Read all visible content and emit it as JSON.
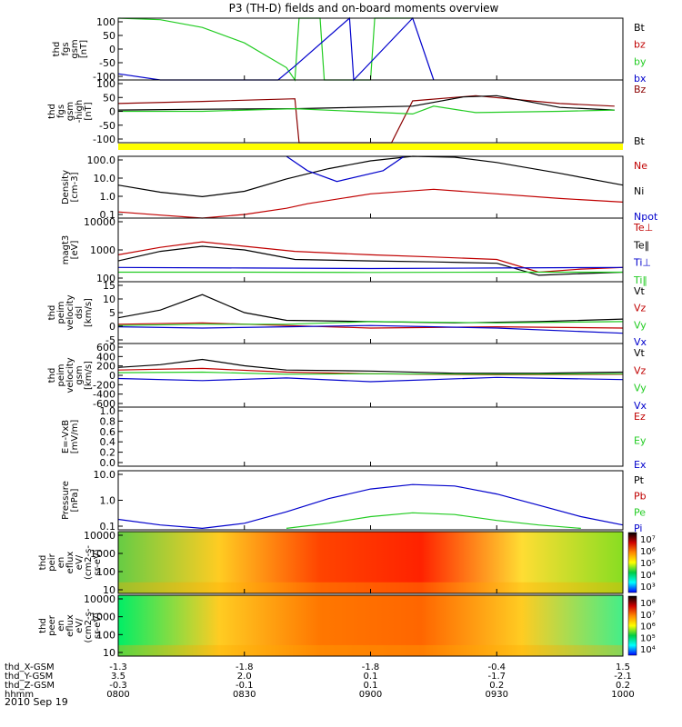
{
  "title": "P3 (TH-D) fields and on-board moments overview",
  "date_label": "2010 Sep 19",
  "colors": {
    "black": "#000000",
    "red": "#c00000",
    "green": "#22cc22",
    "blue": "#0000cc",
    "yellow": "#ffff00",
    "dark_red": "#8b0000"
  },
  "ephemeris": {
    "rows": [
      {
        "label": "thd_X-GSM",
        "values": [
          "-1.3",
          "-1.8",
          "-1.8",
          "-0.4",
          "1.5"
        ]
      },
      {
        "label": "thd_Y-GSM",
        "values": [
          "3.5",
          "2.0",
          "0.1",
          "-1.7",
          "-2.1"
        ]
      },
      {
        "label": "thd_Z-GSM",
        "values": [
          "-0.3",
          "-0.1",
          "0.1",
          "0.2",
          "0.2"
        ]
      },
      {
        "label": "hhmm",
        "values": [
          "0800",
          "0830",
          "0900",
          "0930",
          "1000"
        ]
      }
    ]
  },
  "chart_data": [
    {
      "id": "fgs",
      "type": "line",
      "ylabel": [
        "thd",
        "fgs",
        "gsm",
        "[nT]"
      ],
      "yticks": [
        "100",
        "50",
        "0",
        "-50",
        "-100"
      ],
      "ylim": [
        -100,
        100
      ],
      "legend": [
        {
          "text": "Bt",
          "color": "#000000"
        },
        {
          "text": "bz",
          "color": "#c00000"
        },
        {
          "text": "by",
          "color": "#22cc22"
        },
        {
          "text": "bx",
          "color": "#0000cc"
        }
      ],
      "series": [
        {
          "name": "by",
          "color": "#22cc22",
          "x": [
            "08:00",
            "08:10",
            "08:20",
            "08:30",
            "08:40",
            "08:42",
            "08:43",
            "08:48",
            "08:49",
            "09:00",
            "09:01",
            "09:10"
          ],
          "y": [
            100,
            95,
            70,
            20,
            -60,
            -100,
            100,
            100,
            -100,
            -100,
            100,
            100
          ]
        },
        {
          "name": "bx",
          "color": "#0000cc",
          "x": [
            "08:00",
            "08:10",
            "08:38",
            "08:42",
            "08:55",
            "08:56",
            "09:10",
            "09:15"
          ],
          "y": [
            -80,
            -100,
            -100,
            -55,
            100,
            -100,
            100,
            -100
          ]
        }
      ]
    },
    {
      "id": "fgs_high",
      "type": "line",
      "ylabel": [
        "thd",
        "fgs",
        "gsm",
        "-high",
        "[nT]"
      ],
      "yticks": [
        "100",
        "50",
        "0",
        "-50",
        "-100"
      ],
      "ylim": [
        -120,
        120
      ],
      "legend": [
        {
          "text": "Bz",
          "color": "#8b0000"
        },
        {
          "text": "Bt",
          "color": "#000000"
        }
      ],
      "series": [
        {
          "name": "Bz",
          "color": "#8b0000",
          "x": [
            "08:00",
            "08:20",
            "08:42",
            "08:43",
            "09:05",
            "09:10",
            "09:25",
            "09:45",
            "09:58"
          ],
          "y": [
            30,
            38,
            48,
            -120,
            -120,
            40,
            60,
            30,
            20
          ]
        },
        {
          "name": "Bt",
          "color": "#000000",
          "x": [
            "08:00",
            "08:20",
            "08:42",
            "09:10",
            "09:22",
            "09:30",
            "09:45",
            "09:58"
          ],
          "y": [
            5,
            8,
            10,
            20,
            55,
            60,
            15,
            5
          ]
        },
        {
          "name": "by",
          "color": "#22cc22",
          "x": [
            "08:00",
            "08:20",
            "08:42",
            "09:10",
            "09:15",
            "09:25",
            "09:45",
            "09:58"
          ],
          "y": [
            0,
            0,
            10,
            -10,
            20,
            -5,
            0,
            5
          ]
        }
      ]
    },
    {
      "id": "density",
      "type": "line",
      "log": true,
      "ylabel": [
        "Density",
        "[cm-3]"
      ],
      "yticks": [
        "100.0",
        "10.0",
        "1.0",
        "0.1"
      ],
      "ylim": [
        0.1,
        100
      ],
      "legend": [
        {
          "text": "Ne",
          "color": "#c00000"
        },
        {
          "text": "Ni",
          "color": "#000000"
        },
        {
          "text": "Npot",
          "color": "#0000cc"
        }
      ],
      "series": [
        {
          "name": "Ne",
          "color": "#c00000",
          "x": [
            "08:00",
            "08:10",
            "08:20",
            "08:30",
            "08:40",
            "08:45",
            "09:00",
            "09:15",
            "09:30",
            "09:45",
            "10:00"
          ],
          "y": [
            0.2,
            0.14,
            0.1,
            0.15,
            0.3,
            0.5,
            1.5,
            2.5,
            1.5,
            0.9,
            0.6
          ]
        },
        {
          "name": "Ni",
          "color": "#000000",
          "x": [
            "08:00",
            "08:10",
            "08:20",
            "08:30",
            "08:40",
            "08:50",
            "09:00",
            "09:10",
            "09:20",
            "09:30",
            "09:45",
            "10:00"
          ],
          "y": [
            4,
            1.8,
            1.1,
            2,
            8,
            25,
            60,
            100,
            90,
            50,
            15,
            4
          ]
        },
        {
          "name": "Npot",
          "color": "#0000cc",
          "x": [
            "08:40",
            "08:45",
            "08:52",
            "09:03",
            "09:08"
          ],
          "y": [
            100,
            20,
            6,
            20,
            100
          ]
        }
      ]
    },
    {
      "id": "temperature",
      "type": "line",
      "log": true,
      "ylabel": [
        "magt3",
        "[eV]"
      ],
      "yticks": [
        "10000",
        "1000",
        "100"
      ],
      "ylim": [
        100,
        10000
      ],
      "legend": [
        {
          "text": "Te⊥",
          "color": "#c00000"
        },
        {
          "text": "Te‖",
          "color": "#000000"
        },
        {
          "text": "Ti⊥",
          "color": "#0000cc"
        },
        {
          "text": "Ti‖",
          "color": "#22cc22"
        }
      ],
      "series": [
        {
          "name": "Te⊥",
          "color": "#c00000",
          "x": [
            "08:00",
            "08:10",
            "08:20",
            "08:30",
            "08:42",
            "09:00",
            "09:15",
            "09:30",
            "09:40",
            "09:50",
            "10:00"
          ],
          "y": [
            700,
            1200,
            1800,
            1300,
            900,
            700,
            600,
            500,
            200,
            250,
            280
          ]
        },
        {
          "name": "Te‖",
          "color": "#000000",
          "x": [
            "08:00",
            "08:10",
            "08:20",
            "08:30",
            "08:42",
            "09:00",
            "09:15",
            "09:30",
            "09:40",
            "09:50",
            "10:00"
          ],
          "y": [
            450,
            900,
            1300,
            1000,
            500,
            450,
            420,
            380,
            160,
            180,
            200
          ]
        },
        {
          "name": "Ti⊥",
          "color": "#0000cc",
          "x": [
            "08:00",
            "08:30",
            "09:00",
            "09:30",
            "10:00"
          ],
          "y": [
            280,
            270,
            260,
            270,
            280
          ]
        },
        {
          "name": "Ti‖",
          "color": "#22cc22",
          "x": [
            "08:00",
            "08:30",
            "09:00",
            "09:30",
            "10:00"
          ],
          "y": [
            200,
            200,
            195,
            200,
            200
          ]
        }
      ]
    },
    {
      "id": "velocity_dsl",
      "type": "line",
      "ylabel": [
        "thd",
        "peim",
        "velocity",
        "dsl",
        "[km/s]"
      ],
      "yticks": [
        "15",
        "10",
        "5",
        "0",
        "-5"
      ],
      "ylim": [
        -7,
        17
      ],
      "legend": [
        {
          "text": "Vt",
          "color": "#000000"
        },
        {
          "text": "Vz",
          "color": "#c00000"
        },
        {
          "text": "Vy",
          "color": "#22cc22"
        },
        {
          "text": "Vx",
          "color": "#0000cc"
        }
      ],
      "series": [
        {
          "name": "Vt",
          "color": "#000000",
          "x": [
            "08:00",
            "08:10",
            "08:20",
            "08:30",
            "08:40",
            "09:00",
            "09:20",
            "09:40",
            "10:00"
          ],
          "y": [
            3,
            6,
            12,
            5,
            2,
            1.5,
            1,
            1.5,
            2.5
          ]
        },
        {
          "name": "Vz",
          "color": "#c00000",
          "x": [
            "08:00",
            "08:20",
            "08:40",
            "09:00",
            "09:30",
            "10:00"
          ],
          "y": [
            0.5,
            1,
            0,
            -1,
            -0.5,
            -1
          ]
        },
        {
          "name": "Vy",
          "color": "#22cc22",
          "x": [
            "08:00",
            "08:20",
            "08:40",
            "09:00",
            "09:30",
            "10:00"
          ],
          "y": [
            0,
            0.5,
            0.5,
            1.5,
            1,
            1.5
          ]
        },
        {
          "name": "Vx",
          "color": "#0000cc",
          "x": [
            "08:00",
            "08:20",
            "08:40",
            "09:00",
            "09:30",
            "10:00"
          ],
          "y": [
            -0.5,
            -1,
            -0.5,
            0,
            -1,
            -3
          ]
        }
      ]
    },
    {
      "id": "velocity_gsm",
      "type": "line",
      "ylabel": [
        "thd",
        "peim",
        "velocity",
        "gsm",
        "[km/s]"
      ],
      "yticks": [
        "600",
        "400",
        "200",
        "0",
        "-200",
        "-400",
        "-600"
      ],
      "ylim": [
        -600,
        600
      ],
      "legend": [
        {
          "text": "Vt",
          "color": "#000000"
        },
        {
          "text": "Vz",
          "color": "#c00000"
        },
        {
          "text": "Vy",
          "color": "#22cc22"
        },
        {
          "text": "Vx",
          "color": "#0000cc"
        }
      ],
      "series": [
        {
          "name": "Vt",
          "color": "#000000",
          "x": [
            "08:00",
            "08:10",
            "08:20",
            "08:30",
            "08:40",
            "09:00",
            "09:20",
            "09:40",
            "10:00"
          ],
          "y": [
            150,
            200,
            300,
            180,
            100,
            80,
            40,
            40,
            60
          ]
        },
        {
          "name": "Vz",
          "color": "#c00000",
          "x": [
            "08:00",
            "08:20",
            "08:40",
            "09:00",
            "09:30",
            "10:00"
          ],
          "y": [
            100,
            130,
            60,
            30,
            10,
            20
          ]
        },
        {
          "name": "Vy",
          "color": "#22cc22",
          "x": [
            "08:00",
            "08:20",
            "08:40",
            "09:00",
            "09:30",
            "10:00"
          ],
          "y": [
            50,
            60,
            20,
            30,
            20,
            30
          ]
        },
        {
          "name": "Vx",
          "color": "#0000cc",
          "x": [
            "08:00",
            "08:20",
            "08:40",
            "09:00",
            "09:30",
            "10:00"
          ],
          "y": [
            -60,
            -100,
            -50,
            -120,
            -40,
            -80
          ]
        }
      ]
    },
    {
      "id": "efield",
      "type": "line",
      "ylabel": [
        "E=-VxB",
        "[mV/m]"
      ],
      "yticks": [
        "1.0",
        "0.8",
        "0.6",
        "0.4",
        "0.2",
        "0.0"
      ],
      "ylim": [
        0,
        1
      ],
      "legend": [
        {
          "text": "Ez",
          "color": "#c00000"
        },
        {
          "text": "Ey",
          "color": "#22cc22"
        },
        {
          "text": "Ex",
          "color": "#0000cc"
        }
      ],
      "series": []
    },
    {
      "id": "pressure",
      "type": "line",
      "log": true,
      "ylabel": [
        "Pressure",
        "[nPa]"
      ],
      "yticks": [
        "10.0",
        "1.0",
        "0.1"
      ],
      "ylim": [
        0.03,
        15
      ],
      "legend": [
        {
          "text": "Pt",
          "color": "#000000"
        },
        {
          "text": "Pb",
          "color": "#c00000"
        },
        {
          "text": "Pe",
          "color": "#22cc22"
        },
        {
          "text": "Pi",
          "color": "#0000cc"
        }
      ],
      "series": [
        {
          "name": "Pi",
          "color": "#0000cc",
          "x": [
            "08:00",
            "08:10",
            "08:20",
            "08:30",
            "08:40",
            "08:50",
            "09:00",
            "09:10",
            "09:20",
            "09:30",
            "09:40",
            "09:50",
            "10:00"
          ],
          "y": [
            0.09,
            0.05,
            0.035,
            0.06,
            0.2,
            0.8,
            2.2,
            3.5,
            3.0,
            1.3,
            0.4,
            0.12,
            0.05
          ]
        },
        {
          "name": "Pe",
          "color": "#22cc22",
          "x": [
            "08:40",
            "08:50",
            "09:00",
            "09:10",
            "09:20",
            "09:30",
            "09:40",
            "09:50"
          ],
          "y": [
            0.035,
            0.06,
            0.12,
            0.18,
            0.15,
            0.08,
            0.05,
            0.035
          ]
        }
      ]
    },
    {
      "id": "ion_spectrogram",
      "type": "heatmap",
      "ylabel": [
        "thd",
        "peir",
        "en",
        "eflux",
        "eV/",
        "(cm2-s-",
        "sr-eV)"
      ],
      "yticks": [
        "10000",
        "1000",
        "100",
        "10"
      ],
      "colorbar_ticks": [
        "10⁷",
        "10⁶",
        "10⁵",
        "10⁴",
        "10³"
      ],
      "colorbar_colors": [
        "#000000",
        "#d00000",
        "#ff8800",
        "#ffff00",
        "#00cc44",
        "#00ffff",
        "#0000ff"
      ],
      "bands": [
        "#66cc44",
        "#ffcc22",
        "#ff4400",
        "#ff2200",
        "#ffdd33",
        "#88dd22"
      ]
    },
    {
      "id": "electron_spectrogram",
      "type": "heatmap",
      "ylabel": [
        "thd",
        "peer",
        "en",
        "eflux",
        "eV/",
        "(cm2-s-",
        "sr-eV)"
      ],
      "yticks": [
        "10000",
        "1000",
        "100",
        "10"
      ],
      "colorbar_ticks": [
        "10⁸",
        "10⁷",
        "10⁶",
        "10⁵",
        "10⁴"
      ],
      "colorbar_colors": [
        "#000000",
        "#d00000",
        "#ff8800",
        "#ffff00",
        "#00cc44",
        "#00ffff",
        "#0000ff"
      ],
      "bands": [
        "#00ee66",
        "#ffcc22",
        "#ff7700",
        "#ff6600",
        "#ffcc22",
        "#44ee88"
      ]
    }
  ]
}
